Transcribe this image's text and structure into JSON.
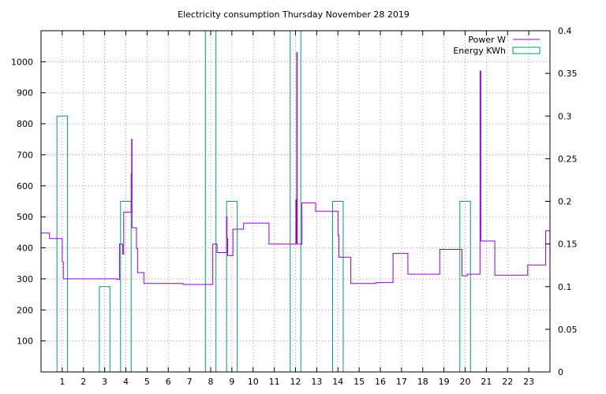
{
  "chart_data": {
    "type": "line",
    "title": "Electricity consumption Thursday November 28 2019",
    "xlabel": "",
    "ylabel": "",
    "y2label": "",
    "xlim": [
      0,
      24
    ],
    "ylim": [
      0,
      1100
    ],
    "y2lim": [
      0,
      0.4
    ],
    "x_ticks": [
      1,
      2,
      3,
      4,
      5,
      6,
      7,
      8,
      9,
      10,
      11,
      12,
      13,
      14,
      15,
      16,
      17,
      18,
      19,
      20,
      21,
      22,
      23
    ],
    "y_ticks": [
      100,
      200,
      300,
      400,
      500,
      600,
      700,
      800,
      900,
      1000
    ],
    "y2_ticks": [
      "0",
      "0.05",
      "0.1",
      "0.15",
      "0.2",
      "0.25",
      "0.3",
      "0.35",
      "0.4"
    ],
    "y2_tick_values": [
      0,
      0.05,
      0.1,
      0.15,
      0.2,
      0.25,
      0.3,
      0.35,
      0.4
    ],
    "grid": true,
    "legend_position": "top-right",
    "colors": {
      "power": "#9400d3",
      "energy": "#009e73"
    },
    "series": [
      {
        "name": "Power W",
        "axis": "left",
        "style": "step-line",
        "points": [
          [
            0,
            448
          ],
          [
            0.4,
            448
          ],
          [
            0.4,
            430
          ],
          [
            1.0,
            430
          ],
          [
            1.0,
            355
          ],
          [
            1.05,
            355
          ],
          [
            1.05,
            300
          ],
          [
            3.6,
            300
          ],
          [
            3.6,
            298
          ],
          [
            3.7,
            298
          ],
          [
            3.7,
            412
          ],
          [
            3.85,
            412
          ],
          [
            3.85,
            380
          ],
          [
            3.9,
            380
          ],
          [
            3.9,
            515
          ],
          [
            4.25,
            515
          ],
          [
            4.25,
            640
          ],
          [
            4.27,
            640
          ],
          [
            4.27,
            750
          ],
          [
            4.29,
            750
          ],
          [
            4.29,
            465
          ],
          [
            4.5,
            465
          ],
          [
            4.5,
            398
          ],
          [
            4.55,
            398
          ],
          [
            4.55,
            320
          ],
          [
            4.85,
            320
          ],
          [
            4.85,
            285
          ],
          [
            6.7,
            285
          ],
          [
            6.7,
            282
          ],
          [
            8.1,
            282
          ],
          [
            8.1,
            412
          ],
          [
            8.3,
            412
          ],
          [
            8.3,
            385
          ],
          [
            8.75,
            385
          ],
          [
            8.75,
            500
          ],
          [
            8.77,
            500
          ],
          [
            8.77,
            430
          ],
          [
            8.8,
            430
          ],
          [
            8.8,
            375
          ],
          [
            9.05,
            375
          ],
          [
            9.05,
            460
          ],
          [
            9.55,
            460
          ],
          [
            9.55,
            480
          ],
          [
            10.75,
            480
          ],
          [
            10.75,
            412
          ],
          [
            12.02,
            412
          ],
          [
            12.02,
            555
          ],
          [
            12.04,
            555
          ],
          [
            12.04,
            415
          ],
          [
            12.06,
            415
          ],
          [
            12.06,
            1030
          ],
          [
            12.08,
            1030
          ],
          [
            12.08,
            412
          ],
          [
            12.3,
            412
          ],
          [
            12.3,
            545
          ],
          [
            12.95,
            545
          ],
          [
            12.95,
            518
          ],
          [
            14.0,
            518
          ],
          [
            14.0,
            440
          ],
          [
            14.05,
            440
          ],
          [
            14.05,
            370
          ],
          [
            14.6,
            370
          ],
          [
            14.6,
            285
          ],
          [
            15.8,
            285
          ],
          [
            15.8,
            288
          ],
          [
            16.6,
            288
          ],
          [
            16.6,
            382
          ],
          [
            17.3,
            382
          ],
          [
            17.3,
            315
          ],
          [
            18.8,
            315
          ],
          [
            18.8,
            395
          ],
          [
            19.85,
            395
          ],
          [
            19.85,
            310
          ],
          [
            20.1,
            310
          ],
          [
            20.1,
            315
          ],
          [
            20.7,
            315
          ],
          [
            20.7,
            970
          ],
          [
            20.74,
            970
          ],
          [
            20.74,
            422
          ],
          [
            21.4,
            422
          ],
          [
            21.4,
            312
          ],
          [
            22.95,
            312
          ],
          [
            22.95,
            345
          ],
          [
            23.8,
            345
          ],
          [
            23.8,
            455
          ],
          [
            24,
            455
          ]
        ]
      },
      {
        "name": "Energy KWh",
        "axis": "right",
        "style": "boxes",
        "bars": [
          {
            "x0": 0.75,
            "x1": 1.25,
            "value": 0.3
          },
          {
            "x0": 2.75,
            "x1": 3.25,
            "value": 0.1
          },
          {
            "x0": 3.75,
            "x1": 4.25,
            "value": 0.2
          },
          {
            "x0": 7.75,
            "x1": 8.25,
            "value": 0.4
          },
          {
            "x0": 8.75,
            "x1": 9.25,
            "value": 0.2
          },
          {
            "x0": 11.75,
            "x1": 12.25,
            "value": 0.4
          },
          {
            "x0": 13.75,
            "x1": 14.25,
            "value": 0.2
          },
          {
            "x0": 19.75,
            "x1": 20.25,
            "value": 0.2
          }
        ]
      }
    ]
  }
}
